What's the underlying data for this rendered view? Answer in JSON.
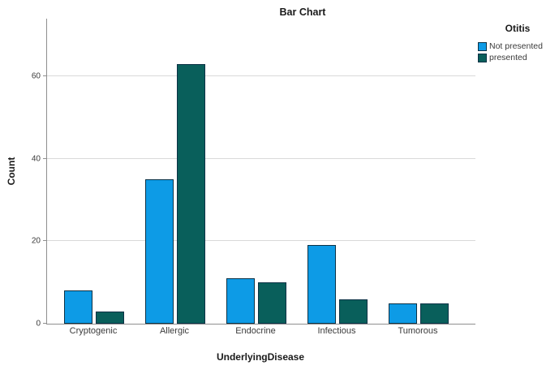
{
  "chart_data": {
    "type": "bar",
    "title": "Bar Chart",
    "xlabel": "UnderlyingDisease",
    "ylabel": "Count",
    "legend_title": "Otitis",
    "legend_position": "right",
    "grid": true,
    "categories": [
      "Cryptogenic",
      "Allergic",
      "Endocrine",
      "Infectious",
      "Tumorous"
    ],
    "series": [
      {
        "name": "Not presented",
        "color": "#0d9be6",
        "values": [
          8,
          35,
          11,
          19,
          5
        ]
      },
      {
        "name": "presented",
        "color": "#095f5b",
        "values": [
          3,
          63,
          10,
          6,
          5
        ]
      }
    ],
    "yticks": [
      0,
      20,
      40,
      60
    ],
    "ylim": [
      0,
      74
    ]
  },
  "colors": {
    "bar_border": "#0c3246",
    "axis_line": "#8f8f8f",
    "gridline": "#d9d9d9",
    "text": "#1a1a1a",
    "tick_text": "#3b3b3b",
    "background": "#ffffff"
  }
}
